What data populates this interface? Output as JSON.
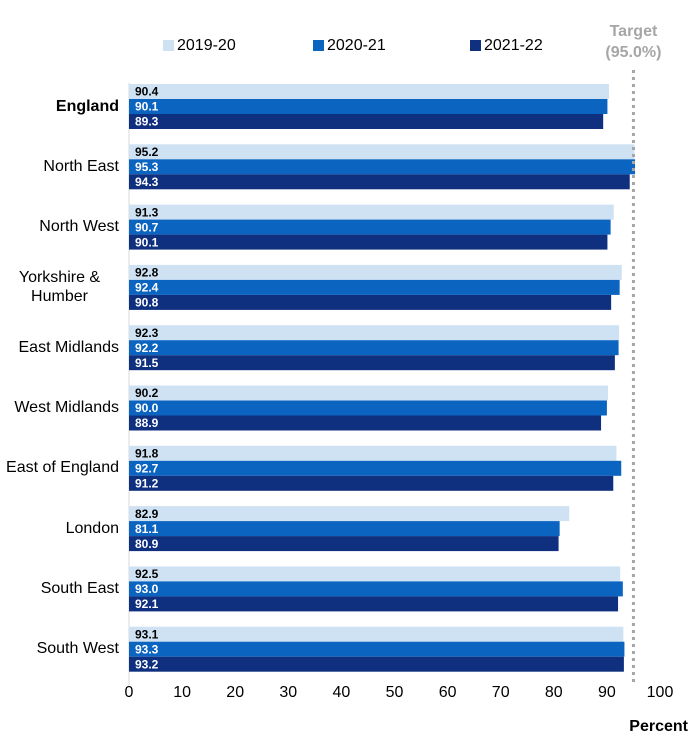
{
  "chart_data": {
    "type": "hbar",
    "categories": [
      "England",
      "North East",
      "North West",
      "Yorkshire & Humber",
      "East Midlands",
      "West Midlands",
      "East of England",
      "London",
      "South East",
      "South West"
    ],
    "series": [
      {
        "name": "2019-20",
        "color": "#cfe2f3",
        "label_color": "#000000",
        "values": [
          90.4,
          95.2,
          91.3,
          92.8,
          92.3,
          90.2,
          91.8,
          82.9,
          92.5,
          93.1
        ]
      },
      {
        "name": "2020-21",
        "color": "#0b64c0",
        "label_color": "#ffffff",
        "values": [
          90.1,
          95.3,
          90.7,
          92.4,
          92.2,
          90.0,
          92.7,
          81.1,
          93.0,
          93.3
        ],
        "value_labels": [
          "90.1",
          "95.3",
          "90.7",
          "92.4",
          "92.2",
          "90.0",
          "92.7",
          "81.1",
          "93.0",
          "93.3"
        ]
      },
      {
        "name": "2021-22",
        "color": "#0f2f7f",
        "label_color": "#ffffff",
        "values": [
          89.3,
          94.3,
          90.1,
          90.8,
          91.5,
          88.9,
          91.2,
          80.9,
          92.1,
          93.2
        ]
      }
    ],
    "xlim": [
      0,
      100
    ],
    "xticks": [
      0,
      10,
      20,
      30,
      40,
      50,
      60,
      70,
      80,
      90,
      100
    ],
    "xlabel": "Percent",
    "target": {
      "value": 95,
      "title": "Target",
      "label": "(95.0%)",
      "color": "#a6a6a6"
    },
    "bold_categories": [
      "England"
    ]
  }
}
